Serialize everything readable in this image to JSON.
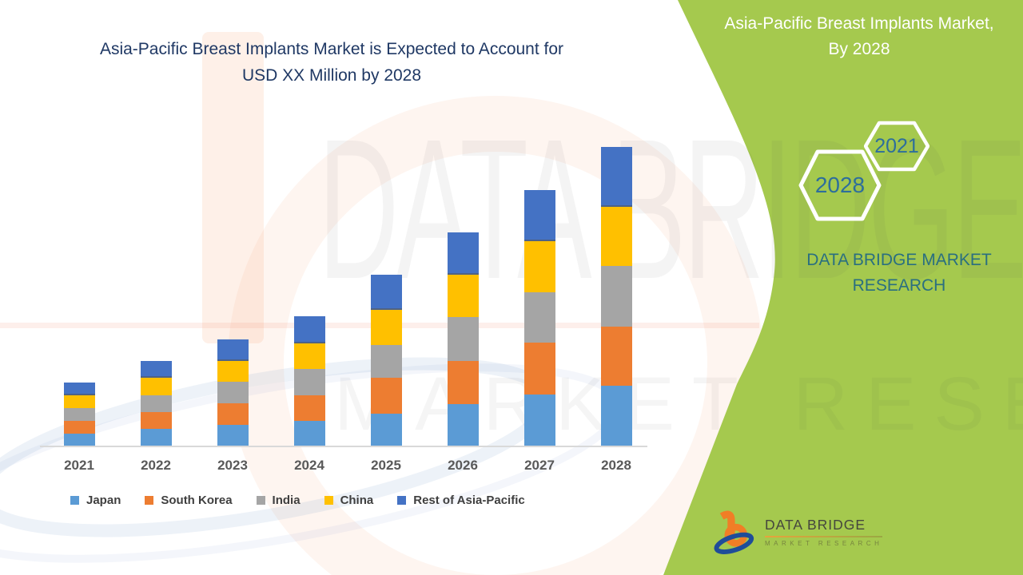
{
  "page": {
    "background": "#ffffff",
    "accent_green": "#a5c94e"
  },
  "chart": {
    "title": "Asia-Pacific Breast Implants Market is Expected to Account for\nUSD XX Million by 2028",
    "title_color": "#1f3864",
    "axis_line_color": "#d9d9d9",
    "x_label_color": "#595959"
  },
  "chart_data": {
    "type": "bar",
    "stacked": true,
    "title": "Asia-Pacific Breast Implants Market is Expected to Account for USD XX Million by 2028",
    "xlabel": "",
    "ylabel": "",
    "values_hidden": true,
    "value_note": "USD XX Million (numeric values not disclosed; series values are relative units read from bar heights)",
    "categories": [
      "2021",
      "2022",
      "2023",
      "2024",
      "2025",
      "2026",
      "2027",
      "2028"
    ],
    "series": [
      {
        "name": "Japan",
        "color": "#5B9BD5",
        "values": [
          16,
          22,
          27,
          32,
          41,
          53,
          65,
          76
        ]
      },
      {
        "name": "South Korea",
        "color": "#ED7D31",
        "values": [
          16,
          21,
          27,
          32,
          45,
          54,
          65,
          74
        ]
      },
      {
        "name": "India",
        "color": "#A5A5A5",
        "values": [
          16,
          21,
          27,
          33,
          41,
          55,
          63,
          76
        ]
      },
      {
        "name": "China",
        "color": "#FFC000",
        "values": [
          16,
          22,
          26,
          32,
          44,
          53,
          64,
          74
        ]
      },
      {
        "name": "Rest of Asia-Pacific",
        "color": "#4472C4",
        "values": [
          16,
          21,
          27,
          34,
          44,
          53,
          64,
          75
        ]
      }
    ],
    "totals": [
      80,
      107,
      134,
      163,
      215,
      268,
      321,
      375
    ],
    "ylim": [
      0,
      400
    ],
    "grid": false,
    "legend_position": "bottom"
  },
  "right_panel": {
    "background": "#a5c94e",
    "title": "Asia-Pacific Breast Implants Market,\nBy 2028",
    "hexagons": [
      {
        "label": "2021"
      },
      {
        "label": "2028"
      }
    ],
    "hexagon_label_color": "#2d6e9c",
    "org_name": "DATA BRIDGE MARKET\nRESEARCH",
    "org_name_color": "#2a6f80"
  },
  "logo": {
    "line1": "DATA BRIDGE",
    "line2": "MARKET RESEARCH"
  },
  "watermark": {
    "line1": "DATA BRIDGE",
    "line2": "MARKET RESEARCH"
  }
}
